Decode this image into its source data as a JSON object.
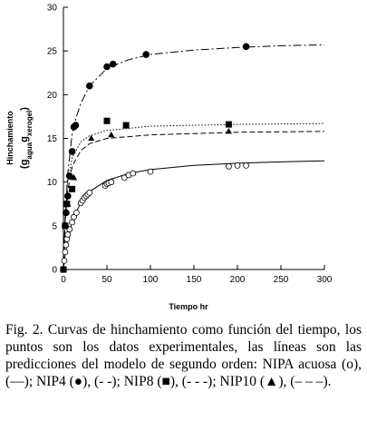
{
  "chart_data": {
    "type": "scatter",
    "x_label": "Tiempo hr",
    "y_label": "Hinchamiento",
    "y_unit": [
      "(g",
      "agua",
      "g",
      "xerogel",
      ")"
    ],
    "xlim": [
      0,
      300
    ],
    "ylim": [
      0,
      30
    ],
    "xticks": [
      0,
      50,
      100,
      150,
      200,
      250,
      300
    ],
    "yticks": [
      0,
      5,
      10,
      15,
      20,
      25,
      30
    ],
    "series": [
      {
        "marker": "circle-open",
        "color": "#000000",
        "dash": "solid",
        "x": [
          0,
          1,
          2,
          3,
          4,
          5,
          7,
          10,
          12,
          15,
          20,
          22,
          24,
          26,
          28,
          30,
          48,
          50,
          52,
          55,
          70,
          75,
          80,
          100,
          190,
          200,
          210
        ],
        "values": [
          0,
          1,
          2,
          2.8,
          3.5,
          4,
          4.6,
          5.4,
          6,
          6.5,
          7.6,
          7.9,
          8.2,
          8.4,
          8.6,
          8.8,
          9.6,
          9.8,
          9.9,
          10,
          10.5,
          10.8,
          11,
          11.2,
          11.8,
          11.9,
          11.9
        ],
        "fit_x": [
          0,
          2,
          5,
          10,
          20,
          30,
          50,
          75,
          100,
          150,
          200,
          250,
          300
        ],
        "fit_values": [
          0,
          1.65,
          3.46,
          5.47,
          7.7,
          8.91,
          10.19,
          10.98,
          11.43,
          11.91,
          12.16,
          12.32,
          12.43
        ]
      },
      {
        "marker": "circle-filled",
        "color": "#000000",
        "dash": "dash-dot",
        "x": [
          0,
          2,
          3,
          5,
          7,
          10,
          12,
          14,
          30,
          50,
          57,
          95,
          210
        ],
        "values": [
          0,
          5,
          6.5,
          8.4,
          10.7,
          13.5,
          16.3,
          16.5,
          21,
          23.2,
          23.5,
          24.6,
          25.5
        ],
        "fit_x": [
          0,
          2,
          5,
          10,
          15,
          20,
          30,
          50,
          75,
          100,
          150,
          200,
          250,
          300
        ],
        "fit_values": [
          0,
          6,
          11,
          15.5,
          17.5,
          19,
          21,
          23,
          24,
          24.6,
          25.1,
          25.4,
          25.6,
          25.7
        ]
      },
      {
        "marker": "square",
        "color": "#000000",
        "dash": "dotted",
        "x": [
          0,
          2,
          4,
          10,
          50,
          72,
          190
        ],
        "values": [
          0,
          5,
          7.5,
          9.2,
          17,
          16.5,
          16.6
        ],
        "fit_x": [
          0,
          2,
          5,
          10,
          20,
          30,
          50,
          100,
          200,
          300
        ],
        "fit_values": [
          0,
          6,
          10,
          12.8,
          14.6,
          15.3,
          15.9,
          16.4,
          16.6,
          16.7
        ]
      },
      {
        "marker": "triangle",
        "color": "#000000",
        "dash": "dashed",
        "x": [
          0,
          2,
          5,
          12,
          32,
          55,
          190
        ],
        "values": [
          0,
          5,
          7.5,
          10.5,
          15,
          15.4,
          15.8
        ],
        "fit_x": [
          0,
          2,
          5,
          10,
          20,
          30,
          50,
          100,
          200,
          300
        ],
        "fit_values": [
          0,
          5.5,
          9,
          11.8,
          13.6,
          14.4,
          15,
          15.4,
          15.7,
          15.8
        ]
      }
    ]
  },
  "caption": "Fig. 2. Curvas de hinchamiento como función del tiempo, los puntos son los datos experimentales, las líneas son las predicciones del modelo de segundo orden: NIPA acuosa (o), (—); NIP4 (●), (- -); NIP8 (■), (- - -); NIP10 (▲), (– – –)."
}
